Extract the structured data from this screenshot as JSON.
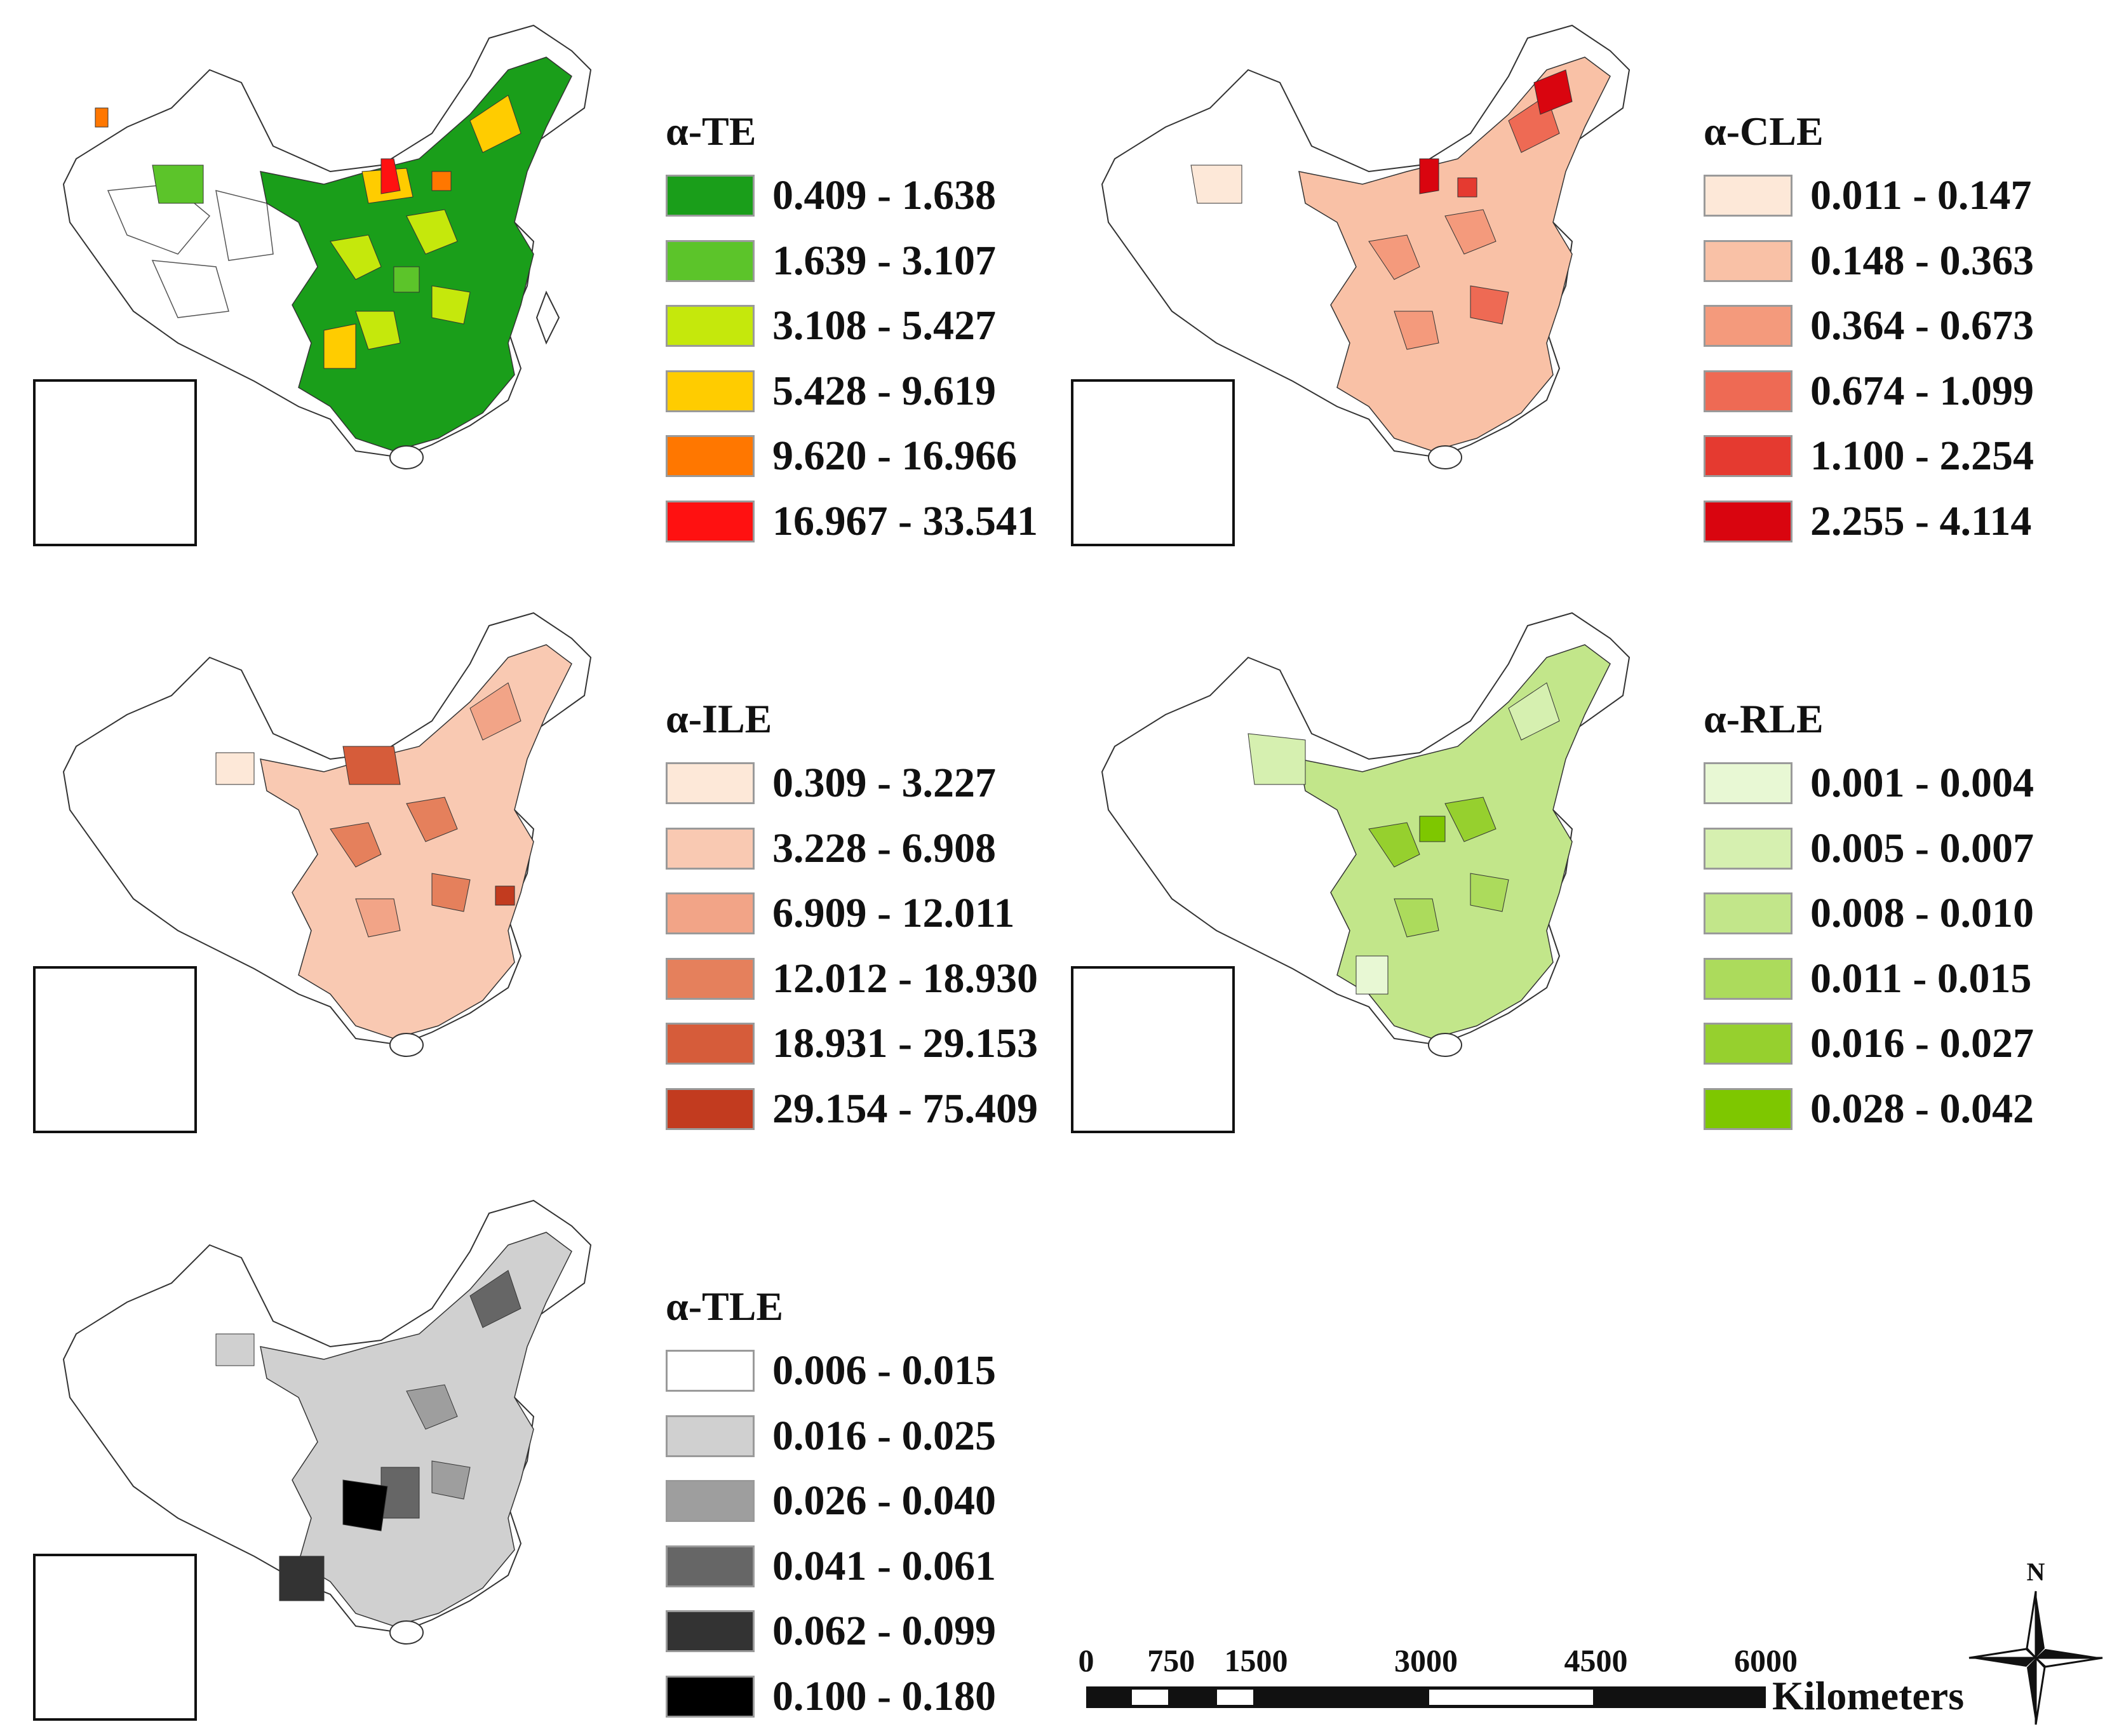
{
  "panels": [
    {
      "id": "te",
      "title": "α-TE",
      "classes": [
        {
          "label": "0.409 - 1.638",
          "color": "#1a9e1a"
        },
        {
          "label": "1.639 - 3.107",
          "color": "#5cc42a"
        },
        {
          "label": "3.108 - 5.427",
          "color": "#c5e80c"
        },
        {
          "label": "5.428 - 9.619",
          "color": "#ffcc00"
        },
        {
          "label": "9.620 - 16.966",
          "color": "#ff7700"
        },
        {
          "label": "16.967 - 33.541",
          "color": "#ff1111"
        }
      ]
    },
    {
      "id": "cle",
      "title": "α-CLE",
      "classes": [
        {
          "label": "0.011 - 0.147",
          "color": "#fde8d8"
        },
        {
          "label": "0.148 - 0.363",
          "color": "#f9c1a6"
        },
        {
          "label": "0.364 - 0.673",
          "color": "#f49a7c"
        },
        {
          "label": "0.674 - 1.099",
          "color": "#ee6a54"
        },
        {
          "label": "1.100 - 2.254",
          "color": "#e53a30"
        },
        {
          "label": "2.255 - 4.114",
          "color": "#d9050f"
        }
      ]
    },
    {
      "id": "ile",
      "title": "α-ILE",
      "classes": [
        {
          "label": "0.309 - 3.227",
          "color": "#fde8d8"
        },
        {
          "label": "3.228 - 6.908",
          "color": "#f9c9b2"
        },
        {
          "label": "6.909 - 12.011",
          "color": "#f2a487"
        },
        {
          "label": "12.012 - 18.930",
          "color": "#e5805c"
        },
        {
          "label": "18.931 - 29.153",
          "color": "#d65c3a"
        },
        {
          "label": "29.154 - 75.409",
          "color": "#c23b1f"
        }
      ]
    },
    {
      "id": "rle",
      "title": "α-RLE",
      "classes": [
        {
          "label": "0.001 - 0.004",
          "color": "#e8f8d4"
        },
        {
          "label": "0.005 - 0.007",
          "color": "#d6f0b0"
        },
        {
          "label": "0.008 - 0.010",
          "color": "#c2e68a"
        },
        {
          "label": "0.011 - 0.015",
          "color": "#acdb5c"
        },
        {
          "label": "0.016 - 0.027",
          "color": "#96d02e"
        },
        {
          "label": "0.028 - 0.042",
          "color": "#7ec700"
        }
      ]
    },
    {
      "id": "tle",
      "title": "α-TLE",
      "classes": [
        {
          "label": "0.006 - 0.015",
          "color": "#ffffff"
        },
        {
          "label": "0.016 - 0.025",
          "color": "#d0d0d0"
        },
        {
          "label": "0.026 - 0.040",
          "color": "#9e9e9e"
        },
        {
          "label": "0.041 - 0.061",
          "color": "#666666"
        },
        {
          "label": "0.062 - 0.099",
          "color": "#333333"
        },
        {
          "label": "0.100 - 0.180",
          "color": "#000000"
        }
      ]
    }
  ],
  "scale": {
    "ticks": [
      "0",
      "750",
      "1500",
      "3000",
      "4500",
      "6000"
    ],
    "tick_values": [
      0,
      750,
      1500,
      3000,
      4500,
      6000
    ],
    "unit": "Kilometers"
  },
  "north": "N"
}
